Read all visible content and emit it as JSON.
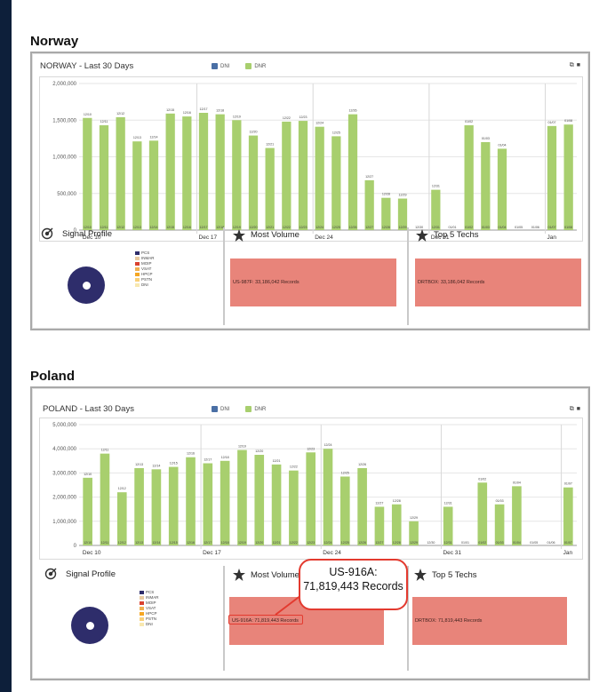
{
  "norway": {
    "section_title": "Norway",
    "panel_title": "NORWAY - Last 30 Days",
    "legend": [
      {
        "label": "DNI",
        "color": "#4a6fa5"
      },
      {
        "label": "DNR",
        "color": "#a8cf6e"
      }
    ],
    "chart_data": {
      "type": "bar",
      "title": "NORWAY - Last 30 Days",
      "ylim": [
        0,
        2000000
      ],
      "y_ticks": [
        "2,000,000",
        "1,500,000",
        "1,000,000",
        "500,000",
        "0"
      ],
      "x_date_labels": [
        "Dec 10",
        "Dec 17",
        "Dec 24",
        "Dec 31",
        "Jan"
      ],
      "categories": [
        "12/10",
        "12/11",
        "12/12",
        "12/13",
        "12/14",
        "12/15",
        "12/16",
        "12/17",
        "12/18",
        "12/19",
        "12/20",
        "12/21",
        "12/22",
        "12/23",
        "12/24",
        "12/25",
        "12/26",
        "12/27",
        "12/28",
        "12/29",
        "12/30",
        "12/31",
        "01/01",
        "01/02",
        "01/03",
        "01/04",
        "01/05",
        "01/06",
        "01/07",
        "01/08"
      ],
      "series": [
        {
          "name": "DNR",
          "values": [
            1530000,
            1430000,
            1540000,
            1210000,
            1220000,
            1590000,
            1550000,
            1600000,
            1580000,
            1500000,
            1290000,
            1120000,
            1480000,
            1490000,
            1410000,
            1280000,
            1580000,
            680000,
            440000,
            430000,
            0,
            550000,
            0,
            1430000,
            1200000,
            1110000,
            0,
            0,
            1420000,
            1440000
          ]
        }
      ]
    },
    "signal_profile": {
      "title": "Signal Profile",
      "legend": [
        "PCS",
        "INMAR",
        "MOIP",
        "VSAT",
        "HPCP",
        "PSTN",
        "DNI"
      ]
    },
    "most_volume": {
      "title": "Most Volume",
      "value": "US-987F: 33,186,042 Records"
    },
    "top_techs": {
      "title": "Top 5 Techs",
      "value": "DRTBOX: 33,186,042 Records"
    }
  },
  "poland": {
    "section_title": "Poland",
    "panel_title": "POLAND - Last 30 Days",
    "legend": [
      {
        "label": "DNI",
        "color": "#4a6fa5"
      },
      {
        "label": "DNR",
        "color": "#a8cf6e"
      }
    ],
    "chart_data": {
      "type": "bar",
      "title": "POLAND - Last 30 Days",
      "ylim": [
        0,
        5000000
      ],
      "y_ticks": [
        "5,000,000",
        "4,000,000",
        "3,000,000",
        "2,000,000",
        "1,000,000",
        "0"
      ],
      "x_date_labels": [
        "Dec 10",
        "Dec 17",
        "Dec 24",
        "Dec 31",
        "Jan"
      ],
      "categories": [
        "12/10",
        "12/11",
        "12/12",
        "12/13",
        "12/14",
        "12/15",
        "12/16",
        "12/17",
        "12/18",
        "12/19",
        "12/20",
        "12/21",
        "12/22",
        "12/23",
        "12/24",
        "12/25",
        "12/26",
        "12/27",
        "12/28",
        "12/29",
        "12/30",
        "12/31",
        "01/01",
        "01/02",
        "01/03",
        "01/04",
        "01/05",
        "01/06",
        "01/07"
      ],
      "series": [
        {
          "name": "DNR",
          "values": [
            2800000,
            3800000,
            2200000,
            3200000,
            3150000,
            3250000,
            3650000,
            3400000,
            3500000,
            3950000,
            3750000,
            3350000,
            3100000,
            3850000,
            4000000,
            2850000,
            3200000,
            1600000,
            1700000,
            1000000,
            0,
            1600000,
            0,
            2600000,
            1700000,
            2450000,
            0,
            0,
            2400000
          ]
        }
      ]
    },
    "signal_profile": {
      "title": "Signal Profile",
      "legend": [
        "PCS",
        "INMAR",
        "MOIP",
        "VSAT",
        "HPCP",
        "PSTN",
        "DNI"
      ]
    },
    "most_volume": {
      "title": "Most Volume",
      "value": "US-916A: 71,819,443 Records"
    },
    "top_techs": {
      "title": "Top 5 Techs",
      "value": "DRTBOX: 71,819,443 Records"
    },
    "callout": {
      "line1": "US-916A:",
      "line2": "71,819,443 Records"
    }
  }
}
